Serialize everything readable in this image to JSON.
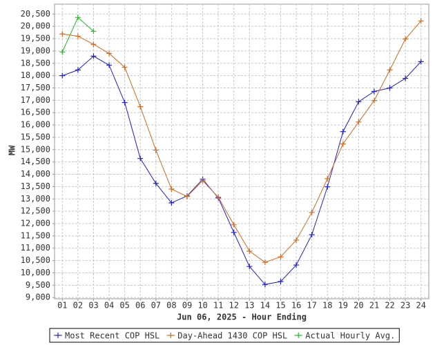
{
  "chart_data": {
    "type": "line",
    "x_label": "Jun 06, 2025 - Hour Ending",
    "y_label": "MW",
    "categories": [
      "01",
      "02",
      "03",
      "04",
      "05",
      "06",
      "07",
      "08",
      "09",
      "10",
      "11",
      "12",
      "13",
      "14",
      "15",
      "16",
      "17",
      "18",
      "19",
      "20",
      "21",
      "22",
      "23",
      "24"
    ],
    "series": [
      {
        "name": "Most Recent COP HSL",
        "color": "#1f1fd6",
        "values": [
          18000,
          18230,
          18790,
          18425,
          16910,
          14640,
          13630,
          12840,
          13120,
          13800,
          13040,
          11640,
          10260,
          9530,
          9650,
          10320,
          11550,
          13490,
          15730,
          16940,
          17360,
          17500,
          17890,
          18570
        ]
      },
      {
        "name": "Day-Ahead 1430 COP HSL",
        "color": "#d2691e",
        "values": [
          19690,
          19600,
          19270,
          18900,
          18340,
          16740,
          14980,
          13400,
          13100,
          13740,
          13070,
          11950,
          10880,
          10430,
          10650,
          11330,
          12450,
          13820,
          15230,
          16120,
          16990,
          18230,
          19490,
          20220
        ]
      },
      {
        "name": "Actual Hourly Avg.",
        "color": "#22bb22",
        "values": [
          18960,
          20360,
          19800,
          null,
          null,
          null,
          null,
          null,
          null,
          null,
          null,
          null,
          null,
          null,
          null,
          null,
          null,
          null,
          null,
          null,
          null,
          null,
          null,
          null
        ]
      }
    ],
    "ylim": [
      8950,
      20900
    ],
    "yticks": [
      {
        "value": 9000,
        "label": "9,000"
      },
      {
        "value": 9500,
        "label": "9,500"
      },
      {
        "value": 10000,
        "label": "10,000"
      },
      {
        "value": 10500,
        "label": "10,500"
      },
      {
        "value": 11000,
        "label": "11,000"
      },
      {
        "value": 11500,
        "label": "11,500"
      },
      {
        "value": 12000,
        "label": "12,000"
      },
      {
        "value": 12500,
        "label": "12,500"
      },
      {
        "value": 13000,
        "label": "13,000"
      },
      {
        "value": 13500,
        "label": "13,500"
      },
      {
        "value": 14000,
        "label": "14,000"
      },
      {
        "value": 14500,
        "label": "14,500"
      },
      {
        "value": 15000,
        "label": "15,000"
      },
      {
        "value": 15500,
        "label": "15,500"
      },
      {
        "value": 16000,
        "label": "16,000"
      },
      {
        "value": 16500,
        "label": "16,500"
      },
      {
        "value": 17000,
        "label": "17,000"
      },
      {
        "value": 17500,
        "label": "17,500"
      },
      {
        "value": 18000,
        "label": "18,000"
      },
      {
        "value": 18500,
        "label": "18,500"
      },
      {
        "value": 19000,
        "label": "19,000"
      },
      {
        "value": 19500,
        "label": "19,500"
      },
      {
        "value": 20000,
        "label": "20,000"
      },
      {
        "value": 20500,
        "label": "20,500"
      }
    ],
    "grid": true,
    "legend": "bottom"
  }
}
